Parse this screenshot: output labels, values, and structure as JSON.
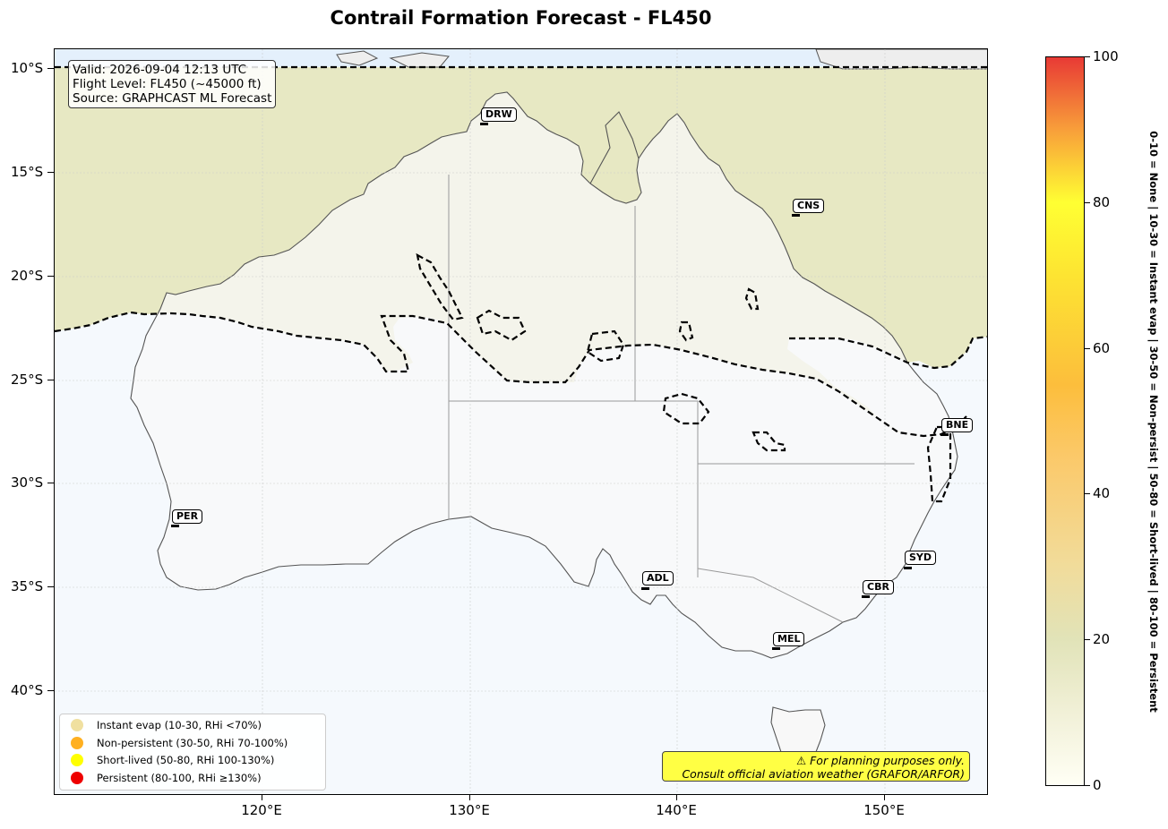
{
  "title": "Contrail Formation Forecast - FL450",
  "info": {
    "valid": "Valid: 2026-09-04 12:13 UTC",
    "flight_level": "Flight Level: FL450 (~45000 ft)",
    "source": "Source: GRAPHCAST ML Forecast"
  },
  "axes": {
    "lat_labels": [
      "10°S",
      "15°S",
      "20°S",
      "25°S",
      "30°S",
      "35°S",
      "40°S"
    ],
    "lon_labels": [
      "120°E",
      "130°E",
      "140°E",
      "150°E"
    ]
  },
  "airports": [
    "DRW",
    "CNS",
    "BNE",
    "PER",
    "SYD",
    "ADL",
    "CBR",
    "MEL"
  ],
  "legend": {
    "items": [
      {
        "label": "Instant evap (10-30, RHi <70%)",
        "color": "#f0e0a0"
      },
      {
        "label": "Non-persistent (30-50, RHi 70-100%)",
        "color": "#ffb020"
      },
      {
        "label": "Short-lived (50-80, RHi 100-130%)",
        "color": "#ffff00"
      },
      {
        "label": "Persistent (80-100, RHi ≥130%)",
        "color": "#ee0000"
      }
    ]
  },
  "disclaimer": {
    "line1": "⚠ For planning purposes only.",
    "line2": "Consult official aviation weather (GRAFOR/ARFOR)"
  },
  "colorbar": {
    "ticks": [
      "0",
      "20",
      "40",
      "60",
      "80",
      "100"
    ],
    "description": "0-10 = None | 10-30 = Instant evap | 30-50 = Non-persist | 50-80 = Short-lived | 80-100 = Persistent"
  },
  "colors": {
    "ocean": "#f5f9fd",
    "land": "#f8f8f8",
    "contrail_zone": "#e6e5bd",
    "coastline": "#555555"
  }
}
